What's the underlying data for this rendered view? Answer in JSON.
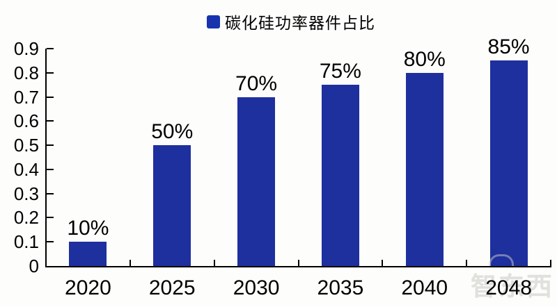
{
  "legend": {
    "label": "碳化硅功率器件占比"
  },
  "chart_data": {
    "type": "bar",
    "title": "",
    "series_name": "碳化硅功率器件占比",
    "categories": [
      "2020",
      "2025",
      "2030",
      "2035",
      "2040",
      "2048"
    ],
    "values": [
      0.1,
      0.5,
      0.7,
      0.75,
      0.8,
      0.85
    ],
    "data_labels": [
      "10%",
      "50%",
      "70%",
      "75%",
      "80%",
      "85%"
    ],
    "xlabel": "",
    "ylabel": "",
    "ylim": [
      0,
      0.9
    ],
    "ytick_step": 0.1,
    "ytick_labels": [
      "0",
      "0.1",
      "0.2",
      "0.3",
      "0.4",
      "0.5",
      "0.6",
      "0.7",
      "0.8",
      "0.9"
    ],
    "grid": false,
    "legend_position": "top-center",
    "bar_color": "#1E2F9E",
    "legend_marker_color": "#1733AD",
    "axis_color": "#000000",
    "text_color": "#000000"
  },
  "watermark": {
    "text": "智东西"
  }
}
